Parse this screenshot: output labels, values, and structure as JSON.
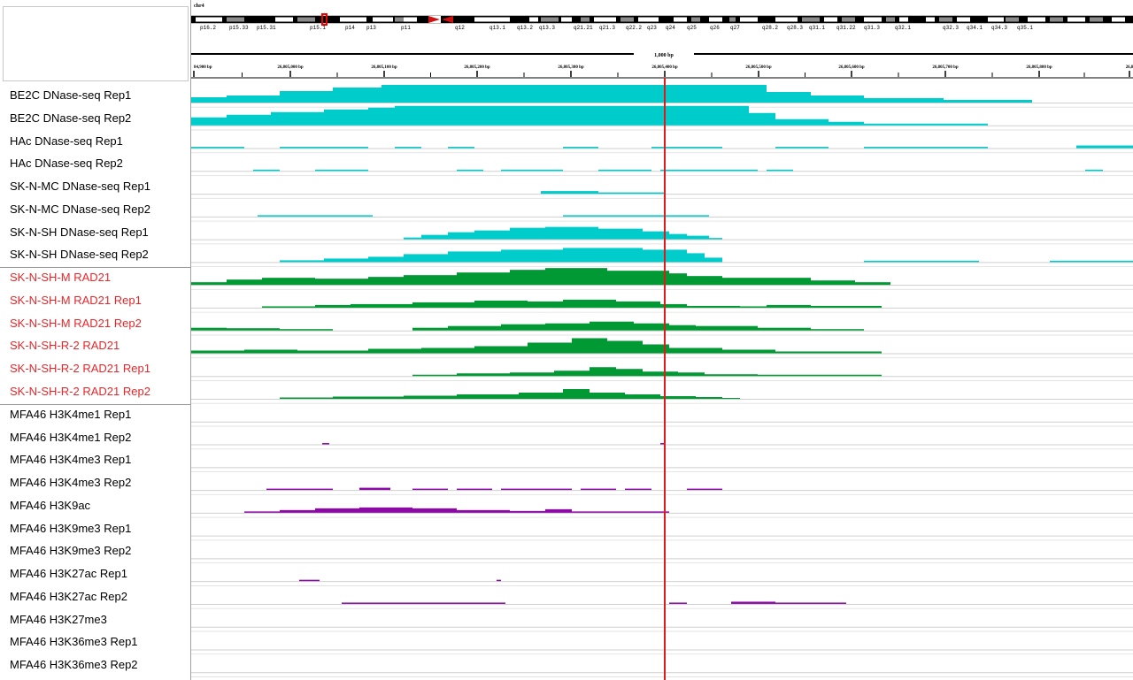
{
  "chromosome": {
    "name": "chr4",
    "bands": [
      "p16.2",
      "p15.33",
      "p15.31",
      "p15.1",
      "p14",
      "p13",
      "p11",
      "q12",
      "q13.1",
      "q13.2",
      "q13.3",
      "q21.21",
      "q21.3",
      "q22.2",
      "q23",
      "q24",
      "q25",
      "q26",
      "q27",
      "q28.2",
      "q28.3",
      "q31.1",
      "q31.22",
      "q31.3",
      "q32.1",
      "q32.3",
      "q34.1",
      "q34.3",
      "q35.1"
    ]
  },
  "ruler": {
    "span_label": "1,000 bp",
    "tick_labels": [
      "84,900 bp",
      "26,805,000 bp",
      "26,805,100 bp",
      "26,805,200 bp",
      "26,805,300 bp",
      "26,805,400 bp",
      "26,805,500 bp",
      "26,805,600 bp",
      "26,805,700 bp",
      "26,805,800 bp",
      "26,8"
    ]
  },
  "colors": {
    "dnase": "#00cccc",
    "rad21": "#009933",
    "histone": "#8b0aa5",
    "cursor": "#e0191b",
    "name_black": "#000000",
    "name_red": "#e8262a"
  },
  "tracks": [
    {
      "name": "BE2C DNase-seq Rep1",
      "type": "dnase",
      "name_color": "black"
    },
    {
      "name": "BE2C DNase-seq Rep2",
      "type": "dnase",
      "name_color": "black"
    },
    {
      "name": "HAc DNase-seq Rep1",
      "type": "dnase",
      "name_color": "black"
    },
    {
      "name": "HAc DNase-seq Rep2",
      "type": "dnase",
      "name_color": "black"
    },
    {
      "name": "SK-N-MC DNase-seq Rep1",
      "type": "dnase",
      "name_color": "black"
    },
    {
      "name": "SK-N-MC DNase-seq Rep2",
      "type": "dnase",
      "name_color": "black"
    },
    {
      "name": "SK-N-SH DNase-seq Rep1",
      "type": "dnase",
      "name_color": "black"
    },
    {
      "name": "SK-N-SH DNase-seq Rep2",
      "type": "dnase",
      "name_color": "black"
    },
    {
      "name": "SK-N-SH-M RAD21",
      "type": "rad21",
      "name_color": "red"
    },
    {
      "name": "SK-N-SH-M RAD21 Rep1",
      "type": "rad21",
      "name_color": "red"
    },
    {
      "name": "SK-N-SH-M RAD21 Rep2",
      "type": "rad21",
      "name_color": "red"
    },
    {
      "name": "SK-N-SH-R-2 RAD21",
      "type": "rad21",
      "name_color": "red"
    },
    {
      "name": "SK-N-SH-R-2 RAD21 Rep1",
      "type": "rad21",
      "name_color": "red"
    },
    {
      "name": "SK-N-SH-R-2 RAD21 Rep2",
      "type": "rad21",
      "name_color": "red"
    },
    {
      "name": "MFA46 H3K4me1 Rep1",
      "type": "histone",
      "name_color": "black"
    },
    {
      "name": "MFA46 H3K4me1 Rep2",
      "type": "histone",
      "name_color": "black"
    },
    {
      "name": "MFA46 H3K4me3 Rep1",
      "type": "histone",
      "name_color": "black"
    },
    {
      "name": "MFA46 H3K4me3 Rep2",
      "type": "histone",
      "name_color": "black"
    },
    {
      "name": "MFA46 H3K9ac",
      "type": "histone",
      "name_color": "black"
    },
    {
      "name": "MFA46 H3K9me3 Rep1",
      "type": "histone",
      "name_color": "black"
    },
    {
      "name": "MFA46 H3K9me3 Rep2",
      "type": "histone",
      "name_color": "black"
    },
    {
      "name": "MFA46 H3K27ac Rep1",
      "type": "histone",
      "name_color": "black"
    },
    {
      "name": "MFA46 H3K27ac Rep2",
      "type": "histone",
      "name_color": "black"
    },
    {
      "name": "MFA46 H3K27me3",
      "type": "histone",
      "name_color": "black"
    },
    {
      "name": "MFA46 H3K36me3 Rep1",
      "type": "histone",
      "name_color": "black"
    },
    {
      "name": "MFA46 H3K36me3 Rep2",
      "type": "histone",
      "name_color": "black"
    }
  ]
}
